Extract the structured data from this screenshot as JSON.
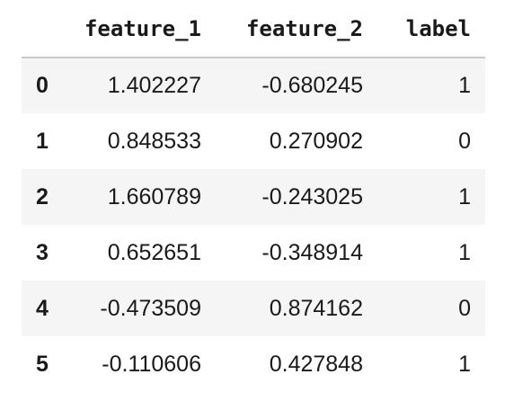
{
  "dataframe": {
    "index_header": "",
    "columns": [
      "feature_1",
      "feature_2",
      "label"
    ],
    "rows": [
      {
        "index": "0",
        "cells": [
          "1.402227",
          "-0.680245",
          "1"
        ]
      },
      {
        "index": "1",
        "cells": [
          "0.848533",
          "0.270902",
          "0"
        ]
      },
      {
        "index": "2",
        "cells": [
          "1.660789",
          "-0.243025",
          "1"
        ]
      },
      {
        "index": "3",
        "cells": [
          "0.652651",
          "-0.348914",
          "1"
        ]
      },
      {
        "index": "4",
        "cells": [
          "-0.473509",
          "0.874162",
          "0"
        ]
      },
      {
        "index": "5",
        "cells": [
          "-0.110606",
          "0.427848",
          "1"
        ]
      }
    ]
  }
}
